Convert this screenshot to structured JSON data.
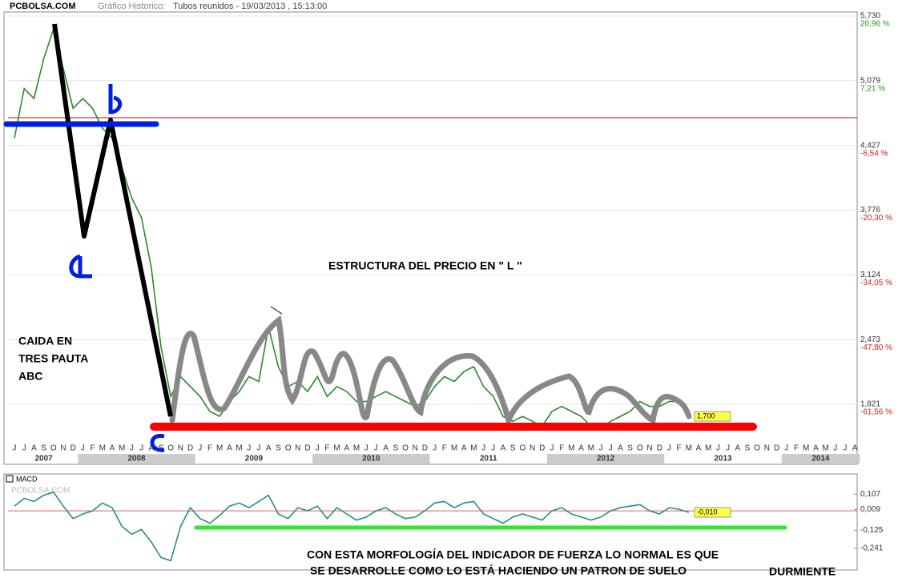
{
  "header": {
    "site": "PCBOLSA.COM",
    "label": "Gráfico Historico:",
    "instrument": "Tubos reunidos - 19/03/2013 , 15:13:00"
  },
  "chart_data": [
    {
      "type": "line",
      "years": [
        {
          "label": "2007",
          "months": [
            "J",
            "J",
            "A",
            "S",
            "O",
            "N",
            "D"
          ]
        },
        {
          "label": "2008",
          "months": [
            "J",
            "F",
            "M",
            "A",
            "M",
            "J",
            "J",
            "A",
            "S",
            "O",
            "N",
            "D"
          ]
        },
        {
          "label": "2009",
          "months": [
            "J",
            "F",
            "M",
            "A",
            "M",
            "J",
            "J",
            "A",
            "S",
            "O",
            "N",
            "D"
          ]
        },
        {
          "label": "2010",
          "months": [
            "J",
            "F",
            "M",
            "A",
            "M",
            "J",
            "J",
            "A",
            "S",
            "O",
            "N",
            "D"
          ]
        },
        {
          "label": "2011",
          "months": [
            "J",
            "F",
            "M",
            "A",
            "M",
            "J",
            "J",
            "A",
            "S",
            "O",
            "N",
            "D"
          ]
        },
        {
          "label": "2012",
          "months": [
            "J",
            "F",
            "M",
            "A",
            "M",
            "J",
            "J",
            "A",
            "S",
            "O",
            "N",
            "D"
          ]
        },
        {
          "label": "2013",
          "months": [
            "J",
            "F",
            "M",
            "A",
            "M",
            "J",
            "J",
            "A",
            "S",
            "O",
            "N",
            "D"
          ]
        },
        {
          "label": "2014",
          "months": [
            "J",
            "F",
            "M",
            "A",
            "M",
            "J",
            "J",
            "A"
          ]
        }
      ],
      "series": [
        {
          "color": "#2a8a2a",
          "values": [
            4.5,
            5.0,
            4.9,
            5.3,
            5.6,
            5.2,
            4.8,
            4.9,
            4.8,
            4.6,
            4.5,
            4.2,
            3.9,
            3.7,
            3.2,
            2.4,
            1.9,
            2.1,
            2.0,
            1.9,
            1.75,
            1.7,
            1.85,
            1.95,
            2.1,
            2.05,
            2.6,
            2.2,
            2.0,
            2.05,
            1.95,
            2.1,
            1.9,
            2.0,
            1.95,
            1.85,
            1.85,
            1.9,
            1.95,
            1.9,
            1.85,
            1.8,
            1.85,
            2.0,
            2.1,
            2.05,
            2.15,
            2.2,
            2.0,
            1.9,
            1.7,
            1.65,
            1.7,
            1.65,
            1.6,
            1.75,
            1.8,
            1.75,
            1.7,
            1.6,
            1.58,
            1.65,
            1.7,
            1.75,
            1.85,
            1.8,
            1.8,
            1.85,
            1.85,
            1.7,
            null,
            null,
            null,
            null,
            null,
            null,
            null,
            null,
            null,
            null,
            null,
            null,
            null,
            null,
            null,
            null,
            null
          ]
        }
      ],
      "ylim": [
        1.475,
        5.77
      ],
      "yticks": [
        {
          "value": 5.73,
          "label": "5,730"
        },
        {
          "value": 5.079,
          "label": "5,079"
        },
        {
          "value": 4.427,
          "label": "4,427"
        },
        {
          "value": 3.776,
          "label": "3,776"
        },
        {
          "value": 3.124,
          "label": "3,124"
        },
        {
          "value": 2.473,
          "label": "2,473"
        },
        {
          "value": 1.821,
          "label": "1,821"
        }
      ],
      "y2lim": [
        -68.86,
        21.81
      ],
      "y2ticks": [
        {
          "value": 20.96,
          "label": "20,96 %"
        },
        {
          "value": 7.21,
          "label": "7,21 %"
        },
        {
          "value": -6.54,
          "label": "-6,54 %"
        },
        {
          "value": -20.3,
          "label": "-20,30 %"
        },
        {
          "value": -34.05,
          "label": "-34,05 %"
        },
        {
          "value": -47.8,
          "label": "-47,80 %"
        },
        {
          "value": -61.56,
          "label": "-61,56 %"
        }
      ],
      "last_value": {
        "value": 1.7,
        "label": "1,700"
      },
      "grid": true
    },
    {
      "type": "line",
      "title": "MACD",
      "watermark": "PCBOLSA.COM",
      "series": [
        {
          "color": "#2a8a8a",
          "values": [
            0.03,
            0.08,
            0.06,
            0.1,
            0.12,
            0.03,
            -0.05,
            -0.02,
            0.0,
            0.05,
            0.02,
            -0.1,
            -0.15,
            -0.12,
            -0.2,
            -0.3,
            -0.32,
            -0.1,
            0.02,
            -0.05,
            -0.08,
            -0.03,
            0.03,
            0.05,
            0.02,
            0.06,
            0.1,
            -0.02,
            -0.05,
            0.02,
            0.0,
            0.03,
            -0.05,
            0.02,
            -0.02,
            -0.06,
            -0.04,
            0.0,
            0.02,
            -0.02,
            -0.05,
            -0.04,
            0.0,
            0.05,
            0.06,
            0.02,
            0.05,
            0.06,
            -0.02,
            -0.05,
            -0.08,
            -0.04,
            -0.02,
            -0.04,
            -0.06,
            0.0,
            0.02,
            -0.02,
            -0.04,
            -0.06,
            -0.04,
            0.0,
            0.02,
            0.03,
            0.04,
            0.0,
            -0.02,
            0.02,
            0.01,
            -0.01,
            null,
            null,
            null,
            null,
            null,
            null,
            null,
            null,
            null,
            null,
            null,
            null,
            null,
            null,
            null,
            null,
            null
          ]
        }
      ],
      "ylim": [
        -0.38,
        0.17
      ],
      "yticks": [
        {
          "value": 0.107,
          "label": "0,107"
        },
        {
          "value": 0.009,
          "label": "0,009"
        },
        {
          "value": -0.125,
          "label": "-0,125"
        },
        {
          "value": -0.241,
          "label": "-0,241"
        }
      ],
      "last_value": {
        "value": -0.01,
        "label": "-0,010"
      }
    }
  ],
  "annotations": {
    "structure": "ESTRUCTURA DEL PRECIO EN \" L \"",
    "fall": [
      "CAIDA EN",
      "TRES PAUTA",
      "ABC"
    ],
    "note": [
      "CON ESTA MORFOLOGÍA DEL INDICADOR DE FUERZA LO NORMAL ES QUE",
      "SE DESARROLLE COMO LO ESTÁ HACIENDO UN PATRON DE SUELO",
      "DURMIENTE"
    ]
  }
}
